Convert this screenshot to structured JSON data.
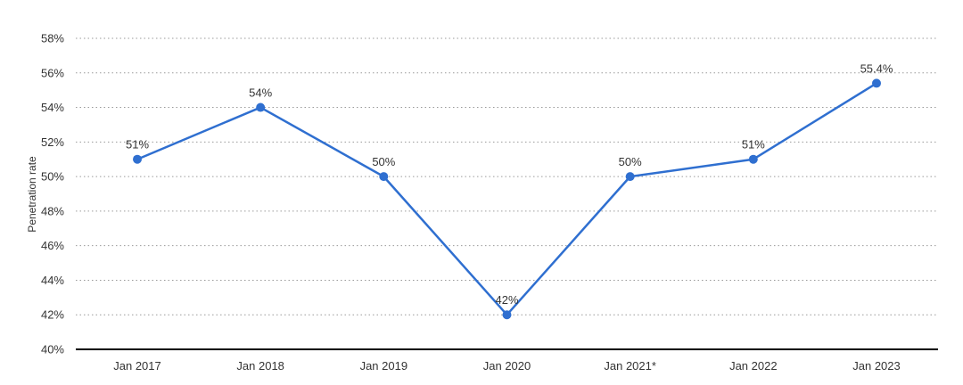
{
  "chart_data": {
    "type": "line",
    "title": "",
    "xlabel": "",
    "ylabel": "Penetration rate",
    "categories": [
      "Jan 2017",
      "Jan 2018",
      "Jan 2019",
      "Jan 2020",
      "Jan 2021*",
      "Jan 2022",
      "Jan 2023"
    ],
    "series": [
      {
        "values": [
          51,
          54,
          50,
          42,
          50,
          51,
          55.4
        ],
        "data_labels": [
          "51%",
          "54%",
          "50%",
          "42%",
          "50%",
          "51%",
          "55.4%"
        ],
        "color": "#2f6fd0"
      }
    ],
    "ylim": [
      40,
      58
    ],
    "yticks": [
      40,
      42,
      44,
      46,
      48,
      50,
      52,
      54,
      56,
      58
    ],
    "ytick_labels": [
      "40%",
      "42%",
      "44%",
      "46%",
      "48%",
      "50%",
      "52%",
      "54%",
      "56%",
      "58%"
    ],
    "grid": true,
    "legend": "none"
  }
}
